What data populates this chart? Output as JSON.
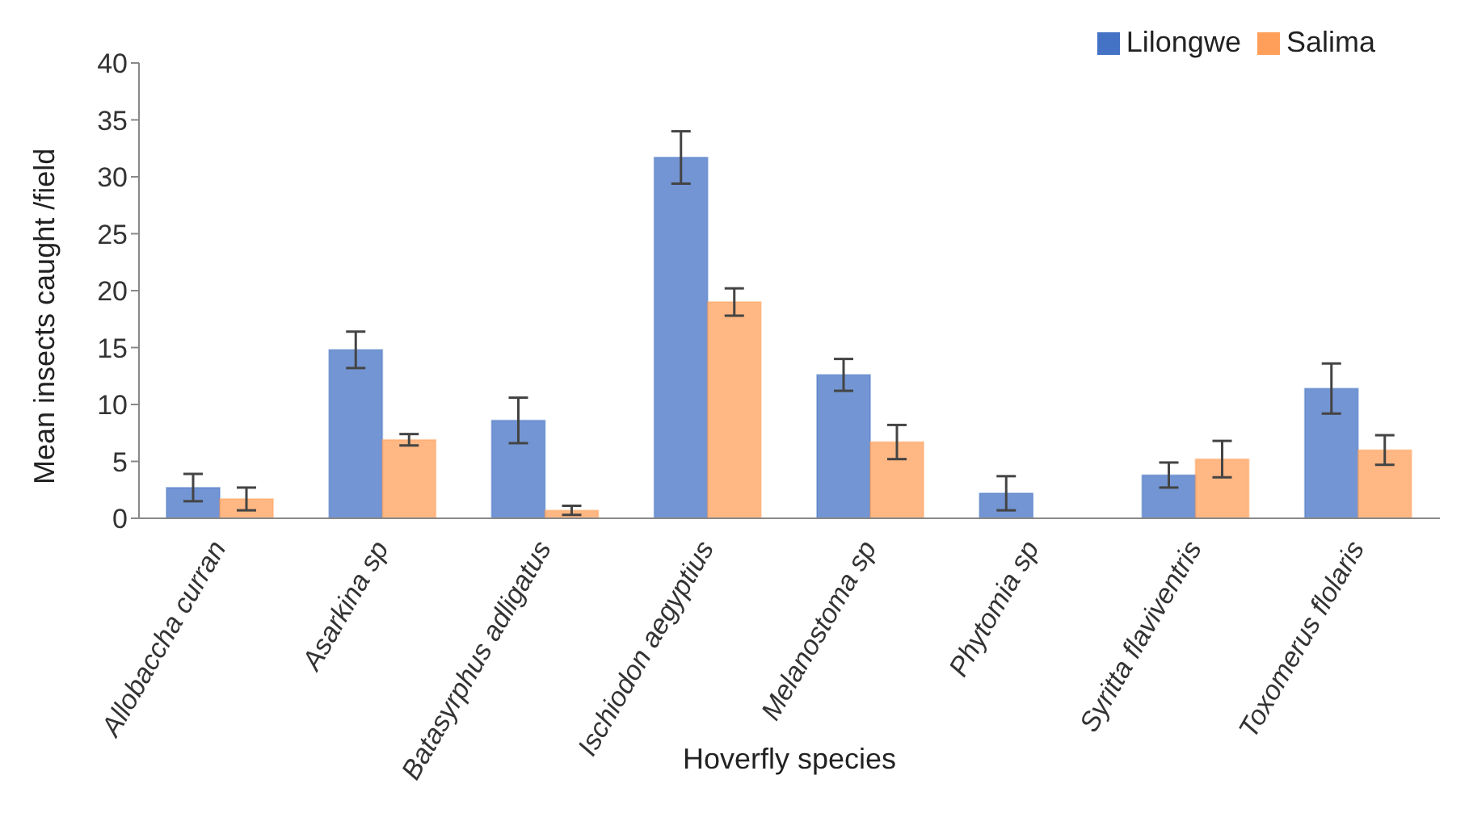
{
  "chart_data": {
    "type": "bar",
    "xlabel": "Hoverfly species",
    "ylabel": "Mean insects caught /field",
    "categories": [
      "Allobaccha curran",
      "Asarkina sp",
      "Batasyrphus adligatus",
      "Ischiodon aegyptius",
      "Melanostoma sp",
      "Phytomia sp",
      "Syritta flaviventris",
      "Toxomerus flolaris"
    ],
    "series": [
      {
        "name": "Lilongwe",
        "color": "#4472c4",
        "values": [
          2.7,
          14.8,
          8.6,
          31.7,
          12.6,
          2.2,
          3.8,
          11.4
        ],
        "errors": [
          1.2,
          1.6,
          2.0,
          2.3,
          1.4,
          1.5,
          1.1,
          2.2
        ]
      },
      {
        "name": "Salima",
        "color": "#ff9f5a",
        "values": [
          1.7,
          6.9,
          0.7,
          19.0,
          6.7,
          null,
          5.2,
          6.0
        ],
        "errors": [
          1.0,
          0.5,
          0.4,
          1.2,
          1.5,
          null,
          1.6,
          1.3
        ]
      }
    ],
    "ylim": [
      0,
      40
    ],
    "yticks": [
      0,
      5,
      10,
      15,
      20,
      25,
      30,
      35,
      40
    ],
    "grid": false,
    "legend": "top right"
  }
}
